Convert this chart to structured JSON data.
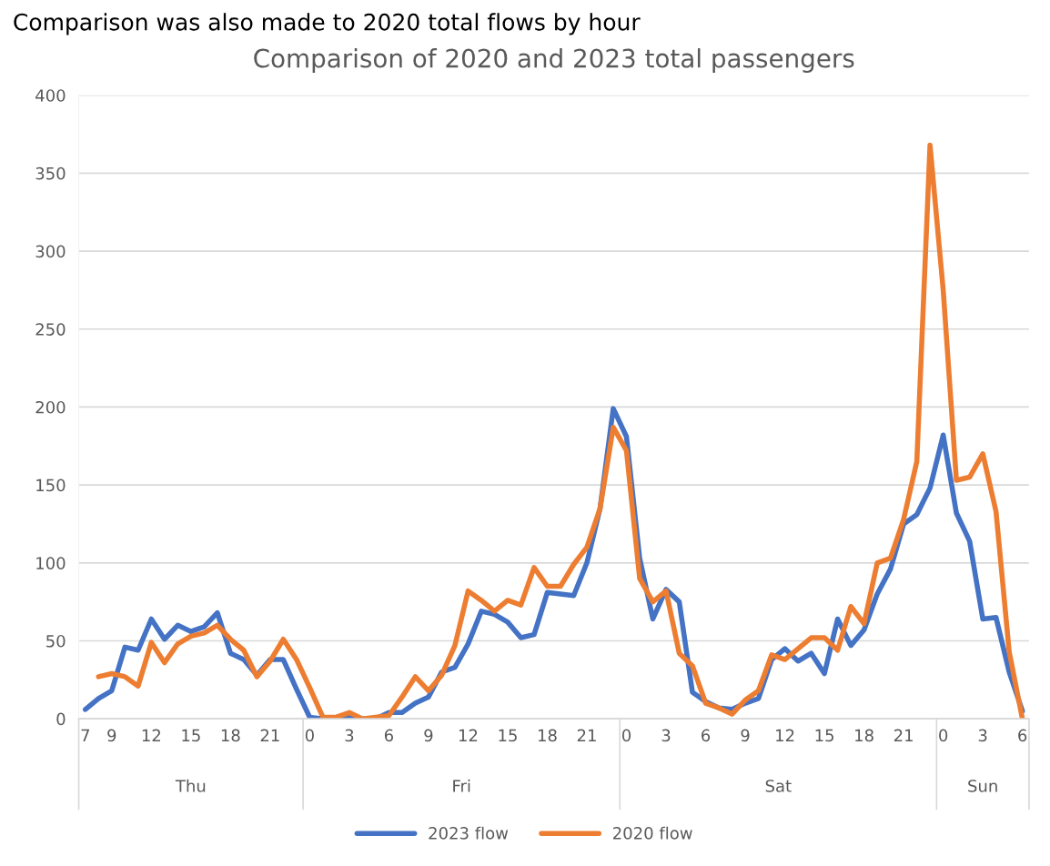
{
  "chart_data": {
    "type": "line",
    "title": "Comparison of 2020 and 2023 total passengers",
    "annotations": [
      "Comparison was also made to 2020 total flows by hour",
      "Thu",
      "Fri",
      "Sat",
      "Sun"
    ],
    "categories": [
      "7",
      null,
      "9",
      null,
      null,
      "12",
      null,
      null,
      "15",
      null,
      null,
      "18",
      null,
      null,
      "21",
      null,
      null,
      "0",
      null,
      null,
      "3",
      null,
      null,
      "6",
      null,
      null,
      "9",
      null,
      null,
      "12",
      null,
      null,
      "15",
      null,
      null,
      "18",
      null,
      null,
      "21",
      null,
      null,
      "0",
      null,
      null,
      "3",
      null,
      null,
      "6",
      null,
      null,
      "9",
      null,
      null,
      "12",
      null,
      null,
      "15",
      null,
      null,
      "18",
      null,
      null,
      "21",
      null,
      null,
      "0",
      null,
      null,
      "3",
      null,
      null,
      "6"
    ],
    "series": [
      {
        "name": "2023 flow",
        "color": "#4472c4",
        "values": [
          6,
          13,
          18,
          46,
          44,
          64,
          51,
          60,
          56,
          59,
          68,
          42,
          38,
          28,
          38,
          38,
          19,
          1,
          0,
          0,
          1,
          0,
          0,
          4,
          4,
          10,
          14,
          30,
          33,
          48,
          69,
          67,
          62,
          52,
          54,
          81,
          80,
          79,
          100,
          135,
          199,
          181,
          103,
          64,
          83,
          75,
          17,
          11,
          7,
          6,
          10,
          13,
          38,
          45,
          37,
          42,
          29,
          64,
          47,
          57,
          80,
          96,
          125,
          131,
          148,
          182,
          132,
          114,
          64,
          65,
          30,
          5
        ]
      },
      {
        "name": "2020 flow",
        "color": "#ed7d31",
        "values": [
          null,
          27,
          29,
          27,
          21,
          49,
          36,
          48,
          53,
          55,
          60,
          51,
          44,
          27,
          37,
          51,
          38,
          20,
          1,
          1,
          4,
          0,
          1,
          2,
          14,
          27,
          18,
          28,
          47,
          82,
          76,
          69,
          76,
          73,
          97,
          85,
          85,
          99,
          110,
          135,
          187,
          172,
          90,
          75,
          82,
          42,
          34,
          10,
          7,
          3,
          12,
          18,
          41,
          38,
          45,
          52,
          52,
          44,
          72,
          61,
          100,
          103,
          128,
          165,
          368,
          275,
          153,
          155,
          170,
          133,
          43,
          0
        ]
      }
    ],
    "ylim": [
      0,
      400
    ],
    "yticks": [
      0,
      50,
      100,
      150,
      200,
      250,
      300,
      350,
      400
    ],
    "grid": "y",
    "legend": "bottom",
    "marker": "none",
    "line_style": "solid"
  }
}
